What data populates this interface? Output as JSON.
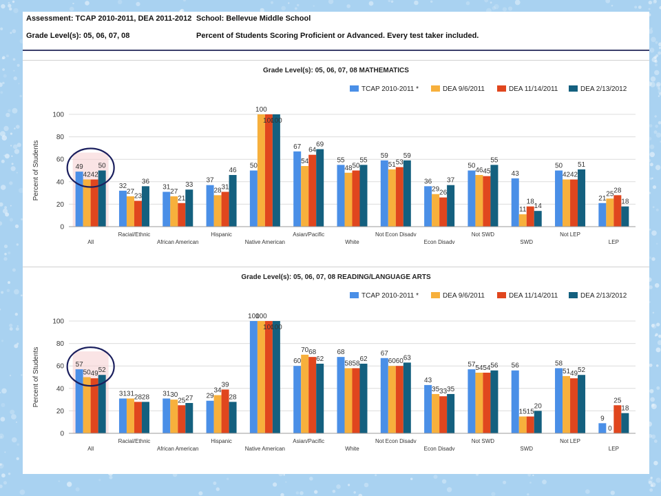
{
  "header": {
    "assessment": "Assessment: TCAP 2010-2011, DEA 2011-2012",
    "school": "School: Bellevue Middle School",
    "grade_levels": "Grade Level(s): 05, 06, 07, 08",
    "description": "Percent of Students Scoring Proficient or Advanced.  Every test taker included."
  },
  "colors": {
    "series": [
      "#4a8fe7",
      "#f7b03c",
      "#e0461e",
      "#14607f"
    ],
    "highlight": "#f6cdd0",
    "circle": "#1b1f5e"
  },
  "chart_data": [
    {
      "type": "bar",
      "title": "Grade Level(s): 05, 06, 07, 08 MATHEMATICS",
      "ylabel": "Percent of Students",
      "xlabel": "",
      "ylim": [
        0,
        100
      ],
      "yticks": [
        "0",
        "20",
        "40",
        "60",
        "80",
        "100"
      ],
      "grid": true,
      "legend_position": "top-right",
      "highlighted_category": "All",
      "categories": [
        "All",
        "Racial/Ethnic",
        "African American",
        "Hispanic",
        "Native American",
        "Asian/Pacific",
        "White",
        "Not Econ Disadv",
        "Econ Disadv",
        "Not SWD",
        "SWD",
        "Not LEP",
        "LEP"
      ],
      "series": [
        {
          "name": "TCAP 2010-2011 *",
          "values": [
            49,
            32,
            31,
            37,
            50,
            67,
            55,
            59,
            36,
            50,
            43,
            50,
            21
          ]
        },
        {
          "name": "DEA 9/6/2011",
          "values": [
            42,
            27,
            27,
            28,
            100,
            54,
            48,
            51,
            29,
            46,
            11,
            42,
            25
          ]
        },
        {
          "name": "DEA 11/14/2011",
          "values": [
            42,
            23,
            21,
            31,
            100,
            64,
            50,
            53,
            26,
            45,
            18,
            42,
            28
          ]
        },
        {
          "name": "DEA 2/13/2012",
          "values": [
            50,
            36,
            33,
            46,
            100,
            69,
            55,
            59,
            37,
            55,
            14,
            51,
            18
          ]
        }
      ]
    },
    {
      "type": "bar",
      "title": "Grade Level(s): 05, 06, 07, 08 READING/LANGUAGE ARTS",
      "ylabel": "Percent of Students",
      "xlabel": "",
      "ylim": [
        0,
        100
      ],
      "yticks": [
        "0",
        "20",
        "40",
        "60",
        "80",
        "100"
      ],
      "grid": true,
      "legend_position": "top-right",
      "highlighted_category": "All",
      "categories": [
        "All",
        "Racial/Ethnic",
        "African American",
        "Hispanic",
        "Native American",
        "Asian/Pacific",
        "White",
        "Not Econ Disadv",
        "Econ Disadv",
        "Not SWD",
        "SWD",
        "Not LEP",
        "LEP"
      ],
      "series": [
        {
          "name": "TCAP 2010-2011 *",
          "values": [
            57,
            31,
            31,
            29,
            100,
            60,
            68,
            67,
            43,
            57,
            56,
            58,
            9
          ]
        },
        {
          "name": "DEA 9/6/2011",
          "values": [
            50,
            31,
            30,
            34,
            100,
            70,
            58,
            60,
            35,
            54,
            15,
            51,
            0
          ]
        },
        {
          "name": "DEA 11/14/2011",
          "values": [
            49,
            28,
            25,
            39,
            100,
            68,
            58,
            60,
            33,
            54,
            15,
            49,
            25
          ]
        },
        {
          "name": "DEA 2/13/2012",
          "values": [
            52,
            28,
            27,
            28,
            100,
            62,
            62,
            63,
            35,
            56,
            20,
            52,
            18
          ]
        }
      ]
    }
  ]
}
